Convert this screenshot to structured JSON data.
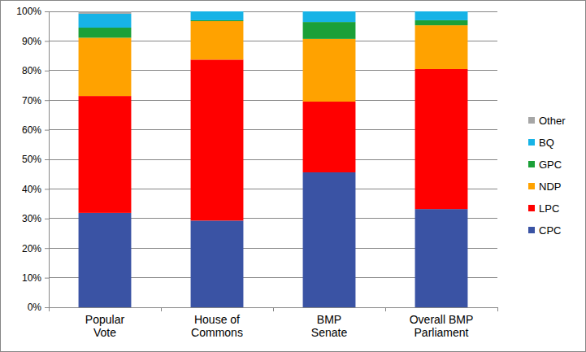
{
  "chart_data": {
    "type": "bar",
    "stacked": true,
    "grid": true,
    "legend": "right",
    "categories": [
      "Popular\nVote",
      "House of\nCommons",
      "BMP\nSenate",
      "Overall BMP\nParliament"
    ],
    "series": [
      {
        "name": "CPC",
        "color": "#3a53a4",
        "values": [
          31.9,
          29.3,
          45.6,
          33.2
        ]
      },
      {
        "name": "LPC",
        "color": "#ff0000",
        "values": [
          39.5,
          54.4,
          23.9,
          47.3
        ]
      },
      {
        "name": "NDP",
        "color": "#ffa200",
        "values": [
          19.7,
          13.0,
          21.2,
          14.8
        ]
      },
      {
        "name": "GPC",
        "color": "#1ba038",
        "values": [
          3.4,
          0.3,
          5.7,
          1.7
        ]
      },
      {
        "name": "BQ",
        "color": "#17b3e6",
        "values": [
          4.7,
          3.0,
          3.6,
          3.0
        ]
      },
      {
        "name": "Other",
        "color": "#a6a6a6",
        "values": [
          0.8,
          0.0,
          0.0,
          0.0
        ]
      }
    ],
    "ylim": [
      0,
      100
    ],
    "yticks": [
      {
        "value": 0,
        "label": "0%"
      },
      {
        "value": 10,
        "label": "10%"
      },
      {
        "value": 20,
        "label": "20%"
      },
      {
        "value": 30,
        "label": "30%"
      },
      {
        "value": 40,
        "label": "40%"
      },
      {
        "value": 50,
        "label": "50%"
      },
      {
        "value": 60,
        "label": "60%"
      },
      {
        "value": 70,
        "label": "70%"
      },
      {
        "value": 80,
        "label": "80%"
      },
      {
        "value": 90,
        "label": "90%"
      },
      {
        "value": 100,
        "label": "100%"
      }
    ]
  }
}
